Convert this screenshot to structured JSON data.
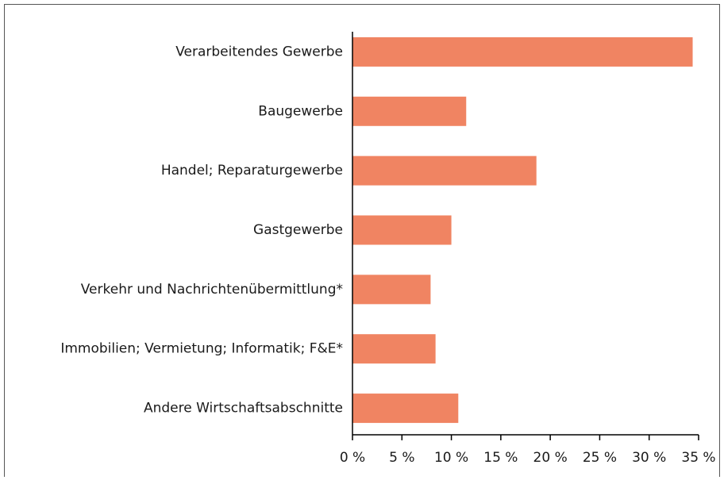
{
  "chart_data": {
    "type": "hbar",
    "categories": [
      "Verarbeitendes Gewerbe",
      "Baugewerbe",
      "Handel; Reparaturgewerbe",
      "Gastgewerbe",
      "Verkehr und Nachrichtenübermittlung*",
      "Immobilien; Vermietung; Informatik; F&E*",
      "Andere Wirtschaftsabschnitte"
    ],
    "values": [
      34.4,
      11.5,
      18.6,
      10.0,
      7.9,
      8.4,
      10.7
    ],
    "color": "#f08462",
    "xlim": [
      0,
      35
    ],
    "xticks": [
      {
        "value": 0,
        "label": "0 %"
      },
      {
        "value": 5,
        "label": "5 %"
      },
      {
        "value": 10,
        "label": "10 %"
      },
      {
        "value": 15,
        "label": "15 %"
      },
      {
        "value": 20,
        "label": "20 %"
      },
      {
        "value": 25,
        "label": "25 %"
      },
      {
        "value": 30,
        "label": "30 %"
      },
      {
        "value": 35,
        "label": "35 %"
      }
    ],
    "grid": false
  }
}
